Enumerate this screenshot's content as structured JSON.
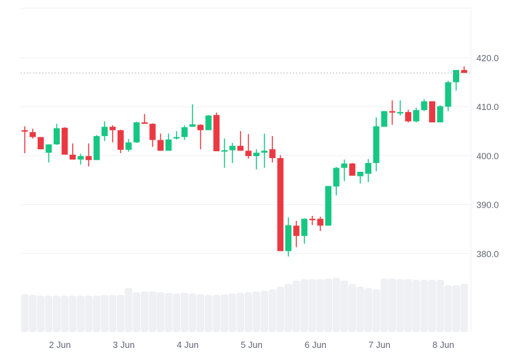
{
  "chart_data": {
    "type": "candlestick",
    "title": "",
    "xlabel": "",
    "ylabel": "",
    "ylim": [
      373,
      430
    ],
    "grid": true,
    "y_ticks": [
      "420.0",
      "410.0",
      "400.0",
      "390.0",
      "380.0"
    ],
    "y_tick_values": [
      420,
      410,
      400,
      390,
      380
    ],
    "x_ticks": [
      "2 Jun",
      "3 Jun",
      "4 Jun",
      "5 Jun",
      "6 Jun",
      "7 Jun",
      "8 Jun"
    ],
    "current_price_line": 416.9,
    "colors": {
      "up": "#16c784",
      "down": "#ea3943",
      "volume": "#eef0f3",
      "grid": "#eff1f4",
      "price_line": "#9aa0a8"
    },
    "candles": [
      [
        405.2,
        406.0,
        400.5,
        404.9
      ],
      [
        404.8,
        405.5,
        403.5,
        403.8
      ],
      [
        403.8,
        403.8,
        401.3,
        401.3
      ],
      [
        400.6,
        402.3,
        398.6,
        402.3
      ],
      [
        402.3,
        406.5,
        402.2,
        405.6
      ],
      [
        405.7,
        405.8,
        400.2,
        400.2
      ],
      [
        400.2,
        402.5,
        399.2,
        399.2
      ],
      [
        399.2,
        400.4,
        398.2,
        399.9
      ],
      [
        399.9,
        402.5,
        397.8,
        399.1
      ],
      [
        399.1,
        404.2,
        399.1,
        404.0
      ],
      [
        404.0,
        407.0,
        403.0,
        405.9
      ],
      [
        405.9,
        406.2,
        402.7,
        405.2
      ],
      [
        405.2,
        405.3,
        400.5,
        401.2
      ],
      [
        401.2,
        403.4,
        400.8,
        402.7
      ],
      [
        402.7,
        406.9,
        402.6,
        406.8
      ],
      [
        406.8,
        408.5,
        406.5,
        406.5
      ],
      [
        406.5,
        406.6,
        401.8,
        403.2
      ],
      [
        403.2,
        404.5,
        401.0,
        401.0
      ],
      [
        401.0,
        404.5,
        401.0,
        403.3
      ],
      [
        403.5,
        405.0,
        403.3,
        403.8
      ],
      [
        403.8,
        406.2,
        403.2,
        405.8
      ],
      [
        405.9,
        410.5,
        405.9,
        406.4
      ],
      [
        406.3,
        406.4,
        401.3,
        405.2
      ],
      [
        405.2,
        408.3,
        405.2,
        408.2
      ],
      [
        408.3,
        408.8,
        400.9,
        400.9
      ],
      [
        400.9,
        403.5,
        397.5,
        401.1
      ],
      [
        401.1,
        402.6,
        398.5,
        402.0
      ],
      [
        402.0,
        405.0,
        401.0,
        401.0
      ],
      [
        401.0,
        404.4,
        399.4,
        399.9
      ],
      [
        399.9,
        401.3,
        397.2,
        400.6
      ],
      [
        400.6,
        404.5,
        397.5,
        401.0
      ],
      [
        401.3,
        404.0,
        398.6,
        399.5
      ],
      [
        399.5,
        400.1,
        380.5,
        380.5
      ],
      [
        380.5,
        387.4,
        379.4,
        385.8
      ],
      [
        385.7,
        386.7,
        381.3,
        383.6
      ],
      [
        383.6,
        387.2,
        382.0,
        387.1
      ],
      [
        387.1,
        387.7,
        385.8,
        386.9
      ],
      [
        387.1,
        387.5,
        384.6,
        385.7
      ],
      [
        385.7,
        393.8,
        385.7,
        393.8
      ],
      [
        393.7,
        397.7,
        391.9,
        397.5
      ],
      [
        397.5,
        399.2,
        394.8,
        398.4
      ],
      [
        398.4,
        398.5,
        395.9,
        395.9
      ],
      [
        395.8,
        396.7,
        394.3,
        396.7
      ],
      [
        396.3,
        399.3,
        394.6,
        398.5
      ],
      [
        398.5,
        407.8,
        396.8,
        406.0
      ],
      [
        405.9,
        409.1,
        405.9,
        409.1
      ],
      [
        409.1,
        411.3,
        406.3,
        408.8
      ],
      [
        408.7,
        411.3,
        408.2,
        408.9
      ],
      [
        408.9,
        409.4,
        406.8,
        407.0
      ],
      [
        407.0,
        409.8,
        406.8,
        409.3
      ],
      [
        409.3,
        411.5,
        409.1,
        411.1
      ],
      [
        411.1,
        411.1,
        406.8,
        406.8
      ],
      [
        406.8,
        410.3,
        406.8,
        410.1
      ],
      [
        410.0,
        415.3,
        409.1,
        415.0
      ],
      [
        415.0,
        417.5,
        413.3,
        417.5
      ],
      [
        417.5,
        418.2,
        416.9,
        416.9
      ]
    ],
    "candle_fields": [
      "open",
      "high",
      "low",
      "close"
    ],
    "volume_relative": [
      55,
      54,
      53,
      53,
      53,
      53,
      53,
      53,
      53,
      53,
      54,
      54,
      54,
      64,
      58,
      59,
      59,
      58,
      57,
      56,
      57,
      56,
      55,
      54,
      54,
      55,
      56,
      57,
      58,
      59,
      60,
      62,
      66,
      70,
      75,
      77,
      77,
      77,
      78,
      79,
      75,
      70,
      66,
      64,
      62,
      78,
      78,
      77,
      77,
      76,
      76,
      76,
      76,
      68,
      68,
      70
    ]
  }
}
